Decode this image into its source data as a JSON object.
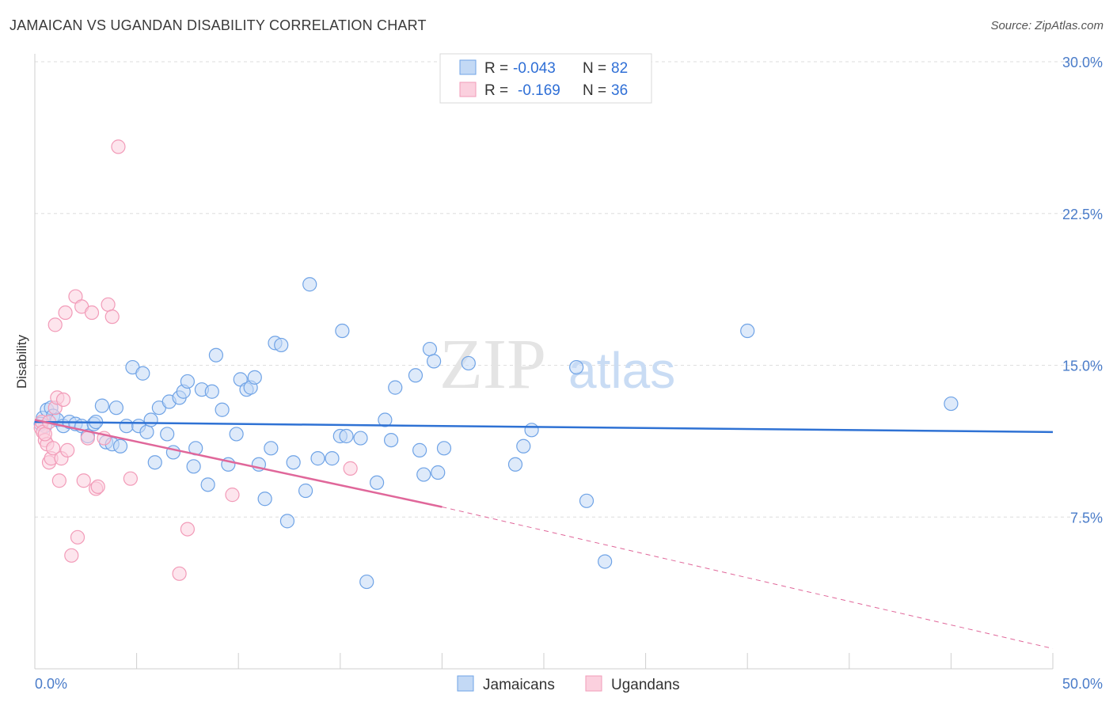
{
  "title": "JAMAICAN VS UGANDAN DISABILITY CORRELATION CHART",
  "source": "Source: ZipAtlas.com",
  "watermark": {
    "zip": "ZIP",
    "atlas": "atlas"
  },
  "legend": {
    "r_label": "R =",
    "n_label": "N =",
    "rows": [
      {
        "r": "-0.043",
        "n": "82"
      },
      {
        "r": "-0.169",
        "n": "36"
      }
    ]
  },
  "chart_data": {
    "type": "scatter",
    "ylabel": "Disability",
    "xlim": [
      0,
      50
    ],
    "ylim": [
      0,
      30
    ],
    "x_tick_labels": [
      "0.0%",
      "50.0%"
    ],
    "y_ticks": [
      7.5,
      15.0,
      22.5,
      30.0
    ],
    "y_tick_labels": [
      "7.5%",
      "15.0%",
      "22.5%",
      "30.0%"
    ],
    "grid": true,
    "colors": {
      "jamaicans": "#6fa3e6",
      "ugandans": "#f29bb8",
      "jam_line": "#2f72d4",
      "uga_line": "#e0679a"
    },
    "series": [
      {
        "name": "Jamaicans",
        "points": [
          [
            0.4,
            12.4
          ],
          [
            0.5,
            12.0
          ],
          [
            0.6,
            12.8
          ],
          [
            0.8,
            12.9
          ],
          [
            0.9,
            12.5
          ],
          [
            1.1,
            12.3
          ],
          [
            1.4,
            12.0
          ],
          [
            1.7,
            12.2
          ],
          [
            2.0,
            12.1
          ],
          [
            2.3,
            12.0
          ],
          [
            2.6,
            11.5
          ],
          [
            2.9,
            12.1
          ],
          [
            3.0,
            12.2
          ],
          [
            3.3,
            13.0
          ],
          [
            3.5,
            11.2
          ],
          [
            3.8,
            11.1
          ],
          [
            4.0,
            12.9
          ],
          [
            4.2,
            11.0
          ],
          [
            4.5,
            12.0
          ],
          [
            4.8,
            14.9
          ],
          [
            5.1,
            12.0
          ],
          [
            5.3,
            14.6
          ],
          [
            5.5,
            11.7
          ],
          [
            5.7,
            12.3
          ],
          [
            5.9,
            10.2
          ],
          [
            6.1,
            12.9
          ],
          [
            6.5,
            11.6
          ],
          [
            6.6,
            13.2
          ],
          [
            6.8,
            10.7
          ],
          [
            7.1,
            13.4
          ],
          [
            7.3,
            13.7
          ],
          [
            7.5,
            14.2
          ],
          [
            7.8,
            10.0
          ],
          [
            7.9,
            10.9
          ],
          [
            8.2,
            13.8
          ],
          [
            8.5,
            9.1
          ],
          [
            8.7,
            13.7
          ],
          [
            8.9,
            15.5
          ],
          [
            9.2,
            12.8
          ],
          [
            9.5,
            10.1
          ],
          [
            9.9,
            11.6
          ],
          [
            10.1,
            14.3
          ],
          [
            10.4,
            13.8
          ],
          [
            10.6,
            13.9
          ],
          [
            10.8,
            14.4
          ],
          [
            11.0,
            10.1
          ],
          [
            11.3,
            8.4
          ],
          [
            11.6,
            10.9
          ],
          [
            11.8,
            16.1
          ],
          [
            12.1,
            16.0
          ],
          [
            12.4,
            7.3
          ],
          [
            12.7,
            10.2
          ],
          [
            13.3,
            8.8
          ],
          [
            13.5,
            19.0
          ],
          [
            13.9,
            10.4
          ],
          [
            14.6,
            10.4
          ],
          [
            15.0,
            11.5
          ],
          [
            15.1,
            16.7
          ],
          [
            15.3,
            11.5
          ],
          [
            16.0,
            11.4
          ],
          [
            16.3,
            4.3
          ],
          [
            16.8,
            9.2
          ],
          [
            17.2,
            12.3
          ],
          [
            17.5,
            11.3
          ],
          [
            17.7,
            13.9
          ],
          [
            18.7,
            14.5
          ],
          [
            18.9,
            10.8
          ],
          [
            19.1,
            9.6
          ],
          [
            19.4,
            15.8
          ],
          [
            19.6,
            15.2
          ],
          [
            19.8,
            9.7
          ],
          [
            20.1,
            10.9
          ],
          [
            21.3,
            15.1
          ],
          [
            23.6,
            10.1
          ],
          [
            24.0,
            11.0
          ],
          [
            24.4,
            11.8
          ],
          [
            26.6,
            14.9
          ],
          [
            27.1,
            8.3
          ],
          [
            28.0,
            5.3
          ],
          [
            35.0,
            16.7
          ],
          [
            45.0,
            13.1
          ],
          [
            0.3,
            12.1
          ]
        ]
      },
      {
        "name": "Ugandans",
        "points": [
          [
            0.3,
            11.9
          ],
          [
            0.35,
            12.2
          ],
          [
            0.4,
            11.7
          ],
          [
            0.5,
            11.3
          ],
          [
            0.6,
            11.1
          ],
          [
            0.7,
            10.2
          ],
          [
            0.8,
            10.4
          ],
          [
            0.9,
            10.9
          ],
          [
            1.0,
            12.9
          ],
          [
            1.1,
            13.4
          ],
          [
            1.2,
            9.3
          ],
          [
            1.3,
            10.4
          ],
          [
            1.4,
            13.3
          ],
          [
            1.5,
            17.6
          ],
          [
            1.6,
            10.8
          ],
          [
            1.8,
            5.6
          ],
          [
            2.0,
            18.4
          ],
          [
            2.1,
            6.5
          ],
          [
            2.3,
            17.9
          ],
          [
            2.4,
            9.3
          ],
          [
            2.6,
            11.4
          ],
          [
            2.8,
            17.6
          ],
          [
            3.0,
            8.9
          ],
          [
            3.1,
            9.0
          ],
          [
            3.4,
            11.4
          ],
          [
            3.6,
            18.0
          ],
          [
            3.8,
            17.4
          ],
          [
            4.1,
            25.8
          ],
          [
            4.7,
            9.4
          ],
          [
            7.1,
            4.7
          ],
          [
            7.5,
            6.9
          ],
          [
            9.7,
            8.6
          ],
          [
            15.5,
            9.9
          ],
          [
            1.0,
            17.0
          ],
          [
            0.5,
            11.6
          ],
          [
            0.7,
            12.2
          ]
        ]
      }
    ],
    "trend_lines": [
      {
        "series": "Jamaicans",
        "x": [
          0,
          50
        ],
        "y": [
          12.2,
          11.7
        ]
      },
      {
        "series": "Ugandans",
        "x": [
          0,
          20,
          50
        ],
        "y": [
          12.3,
          8.0,
          1.0
        ]
      }
    ],
    "legend_bottom": [
      "Jamaicans",
      "Ugandans"
    ]
  }
}
